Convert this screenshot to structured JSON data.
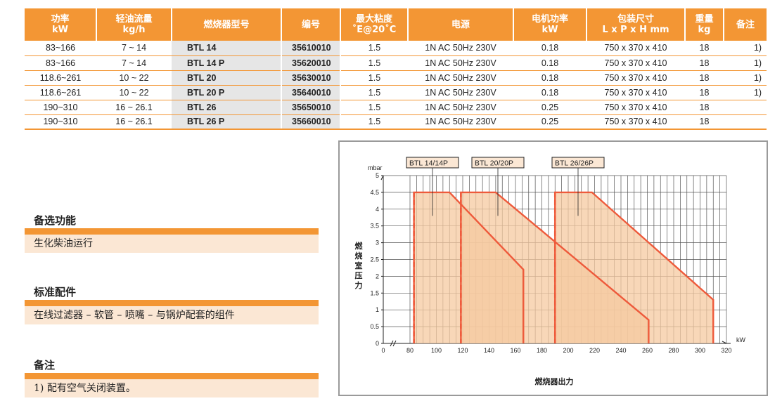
{
  "table": {
    "headers": [
      {
        "line1": "功率",
        "line2": "kW"
      },
      {
        "line1": "轻油流量",
        "line2": "kg/h"
      },
      {
        "line1": "燃烧器型号",
        "line2": ""
      },
      {
        "line1": "编号",
        "line2": ""
      },
      {
        "line1": "最大粘度",
        "line2": "˚E@20˚C"
      },
      {
        "line1": "电源",
        "line2": ""
      },
      {
        "line1": "电机功率",
        "line2": "kW"
      },
      {
        "line1": "包装尺寸",
        "line2": "L x P x H  mm"
      },
      {
        "line1": "重量",
        "line2": "kg"
      },
      {
        "line1": "备注",
        "line2": ""
      }
    ],
    "rows": [
      {
        "power": "83~166",
        "flow": "7 ~ 14",
        "model": "BTL 14",
        "code": "35610010",
        "viscosity": "1.5",
        "supply": "1N AC 50Hz 230V",
        "motor": "0.18",
        "pack": "750 x 370 x 410",
        "weight": "18",
        "note": "1)"
      },
      {
        "power": "83~166",
        "flow": "7 ~ 14",
        "model": "BTL 14 P",
        "code": "35620010",
        "viscosity": "1.5",
        "supply": "1N AC 50Hz 230V",
        "motor": "0.18",
        "pack": "750 x 370 x 410",
        "weight": "18",
        "note": "1)"
      },
      {
        "power": "118.6~261",
        "flow": "10 ~ 22",
        "model": "BTL 20",
        "code": "35630010",
        "viscosity": "1.5",
        "supply": "1N AC 50Hz 230V",
        "motor": "0.18",
        "pack": "750 x 370 x 410",
        "weight": "18",
        "note": "1)"
      },
      {
        "power": "118.6~261",
        "flow": "10 ~ 22",
        "model": "BTL 20 P",
        "code": "35640010",
        "viscosity": "1.5",
        "supply": "1N AC 50Hz 230V",
        "motor": "0.18",
        "pack": "750 x 370 x 410",
        "weight": "18",
        "note": "1)"
      },
      {
        "power": "190~310",
        "flow": "16 ~ 26.1",
        "model": "BTL 26",
        "code": "35650010",
        "viscosity": "1.5",
        "supply": "1N AC 50Hz 230V",
        "motor": "0.25",
        "pack": "750 x 370 x 410",
        "weight": "18",
        "note": ""
      },
      {
        "power": "190~310",
        "flow": "16 ~ 26.1",
        "model": "BTL 26 P",
        "code": "35660010",
        "viscosity": "1.5",
        "supply": "1N AC 50Hz 230V",
        "motor": "0.25",
        "pack": "750 x 370 x 410",
        "weight": "18",
        "note": ""
      }
    ]
  },
  "sections": {
    "optional": {
      "title": "备选功能",
      "text": "生化柴油运行"
    },
    "standard": {
      "title": "标准配件",
      "text": "在线过滤器 – 软管 – 喷嘴 – 与锅炉配套的组件"
    },
    "notes": {
      "title": "备注",
      "text": "1) 配有空气关闭装置。"
    }
  },
  "colors": {
    "accent": "#f39634",
    "light_fill": "#fbe7d4",
    "curve": "#ee5a3b",
    "band_fill": "#f6c9a0"
  },
  "chart_data": {
    "type": "area",
    "xlabel": "燃烧器出力",
    "xunit": "kW",
    "ylabel": "燃烧室压力",
    "yunit": "mbar",
    "xlim": [
      0,
      320
    ],
    "ylim": [
      0,
      5
    ],
    "x_axis_break": true,
    "x_ticks": [
      0,
      80,
      100,
      120,
      140,
      160,
      180,
      200,
      220,
      240,
      260,
      280,
      300,
      320
    ],
    "y_ticks": [
      0,
      0.5,
      1,
      1.5,
      2,
      2.5,
      3,
      3.5,
      4,
      4.5,
      5
    ],
    "grid": true,
    "series": [
      {
        "name": "BTL 14/14P",
        "points": [
          [
            83,
            0
          ],
          [
            83,
            4.5
          ],
          [
            110,
            4.5
          ],
          [
            166,
            2.2
          ],
          [
            166,
            0
          ]
        ]
      },
      {
        "name": "BTL 20/20P",
        "points": [
          [
            118.6,
            0
          ],
          [
            118.6,
            4.5
          ],
          [
            145,
            4.5
          ],
          [
            261,
            0.7
          ],
          [
            261,
            0
          ]
        ]
      },
      {
        "name": "BTL 26/26P",
        "points": [
          [
            190,
            0
          ],
          [
            190,
            4.5
          ],
          [
            218,
            4.5
          ],
          [
            310,
            1.3
          ],
          [
            310,
            0
          ]
        ]
      }
    ]
  }
}
